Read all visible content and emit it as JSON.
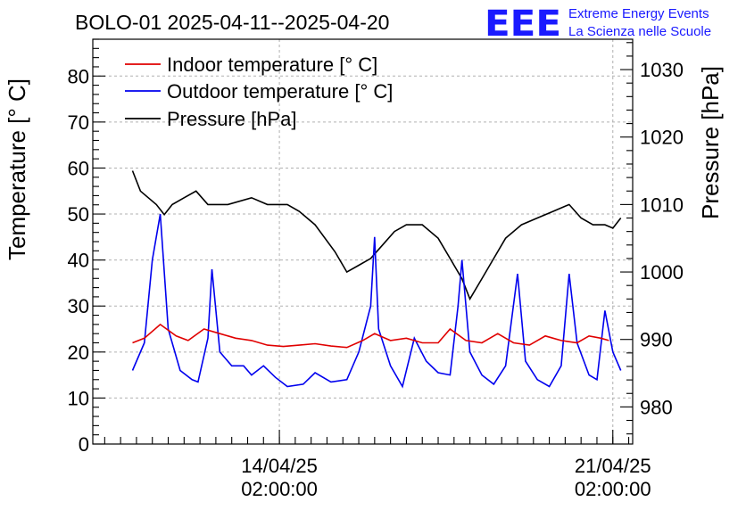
{
  "header": {
    "title": "BOLO-01 2025-04-11--2025-04-20",
    "logo_text": "EEE",
    "logo_line1": "Extreme Energy Events",
    "logo_line2": "La Scienza nelle Scuole"
  },
  "colors": {
    "indoor": "#e00000",
    "outdoor": "#0000ee",
    "pressure": "#000000",
    "logo": "#1a1aff",
    "grid": "#b0b0b0"
  },
  "chart_data": {
    "type": "line",
    "title": "BOLO-01 2025-04-11--2025-04-20",
    "xlabel": "",
    "ylabel": "Temperature [° C]",
    "y2label": "Pressure [hPa]",
    "grid": true,
    "legend_position": "top-left",
    "xlim": [
      "2025-04-10 04:00",
      "2025-04-21 12:00"
    ],
    "ylim": [
      0,
      88
    ],
    "y2lim": [
      974.5,
      1034.5
    ],
    "x_ticks": [
      {
        "x": "2025-04-14 02:00",
        "label_date": "14/04/25",
        "label_time": "02:00:00"
      },
      {
        "x": "2025-04-21 02:00",
        "label_date": "21/04/25",
        "label_time": "02:00:00"
      }
    ],
    "y_ticks": [
      "0",
      "10",
      "20",
      "30",
      "40",
      "50",
      "60",
      "70",
      "80"
    ],
    "y2_ticks": [
      "980",
      "990",
      "1000",
      "1010",
      "1020",
      "1030"
    ],
    "series": [
      {
        "name": "Indoor temperature [° C]",
        "axis": "left",
        "points": [
          [
            "2025-04-11 00:00",
            22
          ],
          [
            "2025-04-11 06:00",
            23
          ],
          [
            "2025-04-11 14:00",
            26
          ],
          [
            "2025-04-11 22:00",
            23.5
          ],
          [
            "2025-04-12 04:00",
            22.5
          ],
          [
            "2025-04-12 12:00",
            25
          ],
          [
            "2025-04-12 20:00",
            24
          ],
          [
            "2025-04-13 04:00",
            23
          ],
          [
            "2025-04-13 12:00",
            22.5
          ],
          [
            "2025-04-13 20:00",
            21.5
          ],
          [
            "2025-04-14 04:00",
            21.2
          ],
          [
            "2025-04-14 12:00",
            21.5
          ],
          [
            "2025-04-14 20:00",
            21.8
          ],
          [
            "2025-04-15 04:00",
            21.3
          ],
          [
            "2025-04-15 12:00",
            21
          ],
          [
            "2025-04-15 20:00",
            22.5
          ],
          [
            "2025-04-16 02:00",
            24
          ],
          [
            "2025-04-16 10:00",
            22.5
          ],
          [
            "2025-04-16 18:00",
            23
          ],
          [
            "2025-04-17 02:00",
            22
          ],
          [
            "2025-04-17 10:00",
            22
          ],
          [
            "2025-04-17 16:00",
            25
          ],
          [
            "2025-04-18 00:00",
            22.5
          ],
          [
            "2025-04-18 08:00",
            22
          ],
          [
            "2025-04-18 16:00",
            24
          ],
          [
            "2025-04-19 00:00",
            22
          ],
          [
            "2025-04-19 08:00",
            21.5
          ],
          [
            "2025-04-19 16:00",
            23.5
          ],
          [
            "2025-04-20 00:00",
            22.5
          ],
          [
            "2025-04-20 08:00",
            22
          ],
          [
            "2025-04-20 14:00",
            23.5
          ],
          [
            "2025-04-20 20:00",
            23
          ],
          [
            "2025-04-21 00:00",
            22.5
          ]
        ]
      },
      {
        "name": "Outdoor temperature [° C]",
        "axis": "left",
        "points": [
          [
            "2025-04-11 00:00",
            16
          ],
          [
            "2025-04-11 06:00",
            22
          ],
          [
            "2025-04-11 10:00",
            40
          ],
          [
            "2025-04-11 14:00",
            50
          ],
          [
            "2025-04-11 18:00",
            25
          ],
          [
            "2025-04-12 00:00",
            16
          ],
          [
            "2025-04-12 06:00",
            14
          ],
          [
            "2025-04-12 09:00",
            13.5
          ],
          [
            "2025-04-12 14:00",
            23
          ],
          [
            "2025-04-12 16:00",
            38
          ],
          [
            "2025-04-12 20:00",
            20
          ],
          [
            "2025-04-13 02:00",
            17
          ],
          [
            "2025-04-13 08:00",
            17
          ],
          [
            "2025-04-13 12:00",
            15
          ],
          [
            "2025-04-13 18:00",
            17
          ],
          [
            "2025-04-14 00:00",
            14.5
          ],
          [
            "2025-04-14 06:00",
            12.5
          ],
          [
            "2025-04-14 14:00",
            13
          ],
          [
            "2025-04-14 20:00",
            15.5
          ],
          [
            "2025-04-15 04:00",
            13.5
          ],
          [
            "2025-04-15 12:00",
            14
          ],
          [
            "2025-04-15 18:00",
            20
          ],
          [
            "2025-04-16 00:00",
            30
          ],
          [
            "2025-04-16 02:00",
            45
          ],
          [
            "2025-04-16 04:00",
            25
          ],
          [
            "2025-04-16 10:00",
            17
          ],
          [
            "2025-04-16 16:00",
            12.5
          ],
          [
            "2025-04-16 22:00",
            23
          ],
          [
            "2025-04-17 04:00",
            18
          ],
          [
            "2025-04-17 10:00",
            15.5
          ],
          [
            "2025-04-17 16:00",
            15
          ],
          [
            "2025-04-17 20:00",
            30
          ],
          [
            "2025-04-17 22:00",
            40
          ],
          [
            "2025-04-18 02:00",
            20
          ],
          [
            "2025-04-18 08:00",
            15
          ],
          [
            "2025-04-18 14:00",
            13
          ],
          [
            "2025-04-18 20:00",
            17
          ],
          [
            "2025-04-19 02:00",
            37
          ],
          [
            "2025-04-19 06:00",
            18
          ],
          [
            "2025-04-19 12:00",
            14
          ],
          [
            "2025-04-19 18:00",
            12.5
          ],
          [
            "2025-04-20 00:00",
            17
          ],
          [
            "2025-04-20 04:00",
            37
          ],
          [
            "2025-04-20 08:00",
            22
          ],
          [
            "2025-04-20 14:00",
            15
          ],
          [
            "2025-04-20 18:00",
            14
          ],
          [
            "2025-04-20 22:00",
            29
          ],
          [
            "2025-04-21 02:00",
            20
          ],
          [
            "2025-04-21 06:00",
            16
          ]
        ]
      },
      {
        "name": "Pressure [hPa]",
        "axis": "right",
        "points": [
          [
            "2025-04-11 00:00",
            1015
          ],
          [
            "2025-04-11 04:00",
            1012
          ],
          [
            "2025-04-11 12:00",
            1010
          ],
          [
            "2025-04-11 16:00",
            1008.5
          ],
          [
            "2025-04-11 20:00",
            1010
          ],
          [
            "2025-04-12 02:00",
            1011
          ],
          [
            "2025-04-12 08:00",
            1012
          ],
          [
            "2025-04-12 14:00",
            1010
          ],
          [
            "2025-04-13 00:00",
            1010
          ],
          [
            "2025-04-13 12:00",
            1011
          ],
          [
            "2025-04-13 20:00",
            1010
          ],
          [
            "2025-04-14 06:00",
            1010
          ],
          [
            "2025-04-14 12:00",
            1009
          ],
          [
            "2025-04-14 20:00",
            1007
          ],
          [
            "2025-04-15 06:00",
            1003
          ],
          [
            "2025-04-15 12:00",
            1000
          ],
          [
            "2025-04-15 18:00",
            1001
          ],
          [
            "2025-04-16 00:00",
            1002
          ],
          [
            "2025-04-16 06:00",
            1004
          ],
          [
            "2025-04-16 12:00",
            1006
          ],
          [
            "2025-04-16 18:00",
            1007
          ],
          [
            "2025-04-17 02:00",
            1007
          ],
          [
            "2025-04-17 10:00",
            1005
          ],
          [
            "2025-04-17 16:00",
            1002
          ],
          [
            "2025-04-17 22:00",
            999
          ],
          [
            "2025-04-18 02:00",
            996
          ],
          [
            "2025-04-18 08:00",
            999
          ],
          [
            "2025-04-18 14:00",
            1002
          ],
          [
            "2025-04-18 20:00",
            1005
          ],
          [
            "2025-04-19 04:00",
            1007
          ],
          [
            "2025-04-19 12:00",
            1008
          ],
          [
            "2025-04-19 20:00",
            1009
          ],
          [
            "2025-04-20 04:00",
            1010
          ],
          [
            "2025-04-20 10:00",
            1008
          ],
          [
            "2025-04-20 16:00",
            1007
          ],
          [
            "2025-04-20 22:00",
            1007
          ],
          [
            "2025-04-21 02:00",
            1006.5
          ],
          [
            "2025-04-21 06:00",
            1008
          ]
        ]
      }
    ]
  }
}
